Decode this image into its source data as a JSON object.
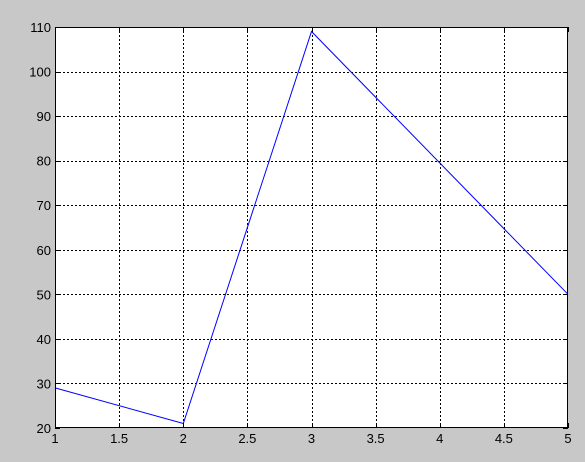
{
  "chart_data": {
    "type": "line",
    "title": "",
    "xlabel": "",
    "ylabel": "",
    "xlim": [
      1,
      5
    ],
    "ylim": [
      20,
      110
    ],
    "grid": true,
    "x_ticks": [
      1,
      1.5,
      2,
      2.5,
      3,
      3.5,
      4,
      4.5,
      5
    ],
    "x_tick_labels": [
      "1",
      "1.5",
      "2",
      "2.5",
      "3",
      "3.5",
      "4",
      "4.5",
      "5"
    ],
    "y_ticks": [
      20,
      30,
      40,
      50,
      60,
      70,
      80,
      90,
      100,
      110
    ],
    "y_tick_labels": [
      "20",
      "30",
      "40",
      "50",
      "60",
      "70",
      "80",
      "90",
      "100",
      "110"
    ],
    "series": [
      {
        "x": [
          1,
          2,
          3,
          5
        ],
        "y": [
          29,
          21,
          109,
          50
        ],
        "color": "#0000ff"
      }
    ],
    "colors": {
      "figure_background": "#c8c8c8",
      "axes_background": "#ffffff",
      "axes_frame": "#000000",
      "grid": "#000000"
    }
  }
}
